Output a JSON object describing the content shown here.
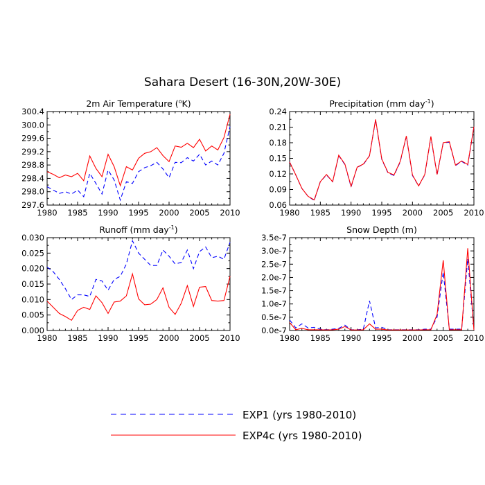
{
  "figure_title": "Sahara Desert (16-30N,20W-30E)",
  "legend": [
    {
      "name": "EXP1 (yrs 1980-2010)",
      "color": "#0000ff",
      "dash": "dashed"
    },
    {
      "name": "EXP4c (yrs 1980-2010)",
      "color": "#ff0000",
      "dash": "solid"
    }
  ],
  "chart_data": [
    {
      "type": "line",
      "title_pre": "2m Air Temperature (",
      "title_sup": "o",
      "title_post": "K)",
      "xlim": [
        1980,
        2010
      ],
      "xticks": [
        1980,
        1985,
        1990,
        1995,
        2000,
        2005,
        2010
      ],
      "ylim": [
        297.6,
        300.4
      ],
      "yticks": [
        297.6,
        298.0,
        298.4,
        298.8,
        299.2,
        299.6,
        300.0,
        300.4
      ],
      "ytick_labels": [
        "297.6",
        "298.0",
        "298.4",
        "298.8",
        "299.2",
        "299.6",
        "300.0",
        "300.4"
      ],
      "x": [
        1980,
        1981,
        1982,
        1983,
        1984,
        1985,
        1986,
        1987,
        1988,
        1989,
        1990,
        1991,
        1992,
        1993,
        1994,
        1995,
        1996,
        1997,
        1998,
        1999,
        2000,
        2001,
        2002,
        2003,
        2004,
        2005,
        2006,
        2007,
        2008,
        2009,
        2010
      ],
      "series": [
        {
          "name": "EXP1 (yrs 1980-2010)",
          "values": [
            298.15,
            298.05,
            297.95,
            298.0,
            297.93,
            298.05,
            297.85,
            298.55,
            298.25,
            297.93,
            298.65,
            298.35,
            297.75,
            298.3,
            298.25,
            298.6,
            298.72,
            298.78,
            298.88,
            298.68,
            298.42,
            298.88,
            298.87,
            299.02,
            298.92,
            299.12,
            298.8,
            298.92,
            298.8,
            299.15,
            299.95
          ]
        },
        {
          "name": "EXP4c (yrs 1980-2010)",
          "values": [
            298.6,
            298.52,
            298.42,
            298.5,
            298.45,
            298.55,
            298.33,
            299.07,
            298.7,
            298.45,
            299.12,
            298.75,
            298.18,
            298.75,
            298.65,
            299.0,
            299.15,
            299.2,
            299.32,
            299.08,
            298.9,
            299.37,
            299.33,
            299.45,
            299.32,
            299.57,
            299.22,
            299.37,
            299.25,
            299.62,
            300.32
          ]
        }
      ]
    },
    {
      "type": "line",
      "title_pre": "Precipitation (mm day",
      "title_sup": "-1",
      "title_post": ")",
      "xlim": [
        1980,
        2010
      ],
      "xticks": [
        1980,
        1985,
        1990,
        1995,
        2000,
        2005,
        2010
      ],
      "ylim": [
        0.06,
        0.24
      ],
      "yticks": [
        0.06,
        0.09,
        0.12,
        0.15,
        0.18,
        0.21,
        0.24
      ],
      "ytick_labels": [
        "0.06",
        "0.09",
        "0.12",
        "0.15",
        "0.18",
        "0.21",
        "0.24"
      ],
      "x": [
        1980,
        1981,
        1982,
        1983,
        1984,
        1985,
        1986,
        1987,
        1988,
        1989,
        1990,
        1991,
        1992,
        1993,
        1994,
        1995,
        1996,
        1997,
        1998,
        1999,
        2000,
        2001,
        2002,
        2003,
        2004,
        2005,
        2006,
        2007,
        2008,
        2009,
        2010
      ],
      "series": [
        {
          "name": "EXP1 (yrs 1980-2010)",
          "values": [
            0.143,
            0.118,
            0.092,
            0.077,
            0.069,
            0.105,
            0.118,
            0.105,
            0.155,
            0.138,
            0.095,
            0.133,
            0.138,
            0.155,
            0.224,
            0.148,
            0.122,
            0.117,
            0.143,
            0.192,
            0.117,
            0.097,
            0.118,
            0.191,
            0.118,
            0.18,
            0.181,
            0.136,
            0.144,
            0.137,
            0.21
          ]
        },
        {
          "name": "EXP4c (yrs 1980-2010)",
          "values": [
            0.143,
            0.118,
            0.092,
            0.077,
            0.07,
            0.105,
            0.119,
            0.105,
            0.156,
            0.139,
            0.096,
            0.133,
            0.139,
            0.155,
            0.225,
            0.149,
            0.123,
            0.118,
            0.144,
            0.193,
            0.118,
            0.097,
            0.119,
            0.192,
            0.119,
            0.18,
            0.182,
            0.137,
            0.145,
            0.138,
            0.211
          ]
        }
      ]
    },
    {
      "type": "line",
      "title_pre": "Runoff (mm day",
      "title_sup": "-1",
      "title_post": ")",
      "xlim": [
        1980,
        2010
      ],
      "xticks": [
        1980,
        1985,
        1990,
        1995,
        2000,
        2005,
        2010
      ],
      "ylim": [
        0.0,
        0.03
      ],
      "yticks": [
        0.0,
        0.005,
        0.01,
        0.015,
        0.02,
        0.025,
        0.03
      ],
      "ytick_labels": [
        "0.000",
        "0.005",
        "0.010",
        "0.015",
        "0.020",
        "0.025",
        "0.030"
      ],
      "x": [
        1980,
        1981,
        1982,
        1983,
        1984,
        1985,
        1986,
        1987,
        1988,
        1989,
        1990,
        1991,
        1992,
        1993,
        1994,
        1995,
        1996,
        1997,
        1998,
        1999,
        2000,
        2001,
        2002,
        2003,
        2004,
        2005,
        2006,
        2007,
        2008,
        2009,
        2010
      ],
      "series": [
        {
          "name": "EXP1 (yrs 1980-2010)",
          "values": [
            0.0205,
            0.019,
            0.0165,
            0.0135,
            0.01,
            0.0115,
            0.0115,
            0.011,
            0.0165,
            0.016,
            0.013,
            0.0165,
            0.0175,
            0.0215,
            0.029,
            0.025,
            0.023,
            0.021,
            0.021,
            0.026,
            0.024,
            0.0215,
            0.022,
            0.026,
            0.02,
            0.0255,
            0.027,
            0.0235,
            0.024,
            0.023,
            0.0285
          ]
        },
        {
          "name": "EXP4c (yrs 1980-2010)",
          "values": [
            0.0095,
            0.0075,
            0.0055,
            0.0045,
            0.0033,
            0.0065,
            0.0075,
            0.0068,
            0.0112,
            0.009,
            0.0055,
            0.0092,
            0.0095,
            0.0112,
            0.0183,
            0.0102,
            0.0083,
            0.0085,
            0.01,
            0.0138,
            0.0075,
            0.0052,
            0.0088,
            0.0145,
            0.0078,
            0.014,
            0.0142,
            0.0097,
            0.0095,
            0.0097,
            0.0175
          ]
        }
      ]
    },
    {
      "type": "line",
      "title_pre": "Snow Depth (m)",
      "title_sup": "",
      "title_post": "",
      "xlim": [
        1980,
        2010
      ],
      "xticks": [
        1980,
        1985,
        1990,
        1995,
        2000,
        2005,
        2010
      ],
      "ylim": [
        0.0,
        3.5e-07
      ],
      "yticks": [
        0.0,
        5e-08,
        1e-07,
        1.5e-07,
        2e-07,
        2.5e-07,
        3e-07,
        3.5e-07
      ],
      "ytick_labels": [
        "0.0e-7",
        "0.5e-7",
        "1.0e-7",
        "1.5e-7",
        "2.0e-7",
        "2.5e-7",
        "3.0e-7",
        "3.5e-7"
      ],
      "x": [
        1980,
        1981,
        1982,
        1983,
        1984,
        1985,
        1986,
        1987,
        1988,
        1989,
        1990,
        1991,
        1992,
        1993,
        1994,
        1995,
        1996,
        1997,
        1998,
        1999,
        2000,
        2001,
        2002,
        2003,
        2004,
        2005,
        2006,
        2007,
        2008,
        2009,
        2010
      ],
      "series": [
        {
          "name": "EXP1 (yrs 1980-2010)",
          "values": [
            4e-08,
            1e-08,
            2.5e-08,
            1e-08,
            1.2e-08,
            5e-09,
            3e-09,
            5e-09,
            8e-09,
            2e-08,
            3e-09,
            3e-09,
            5e-09,
            1.12e-07,
            1e-08,
            1.2e-08,
            3e-09,
            3e-09,
            3e-09,
            3e-09,
            3e-09,
            3e-09,
            5e-09,
            5e-09,
            5e-08,
            2.2e-07,
            5e-09,
            5e-09,
            5e-09,
            2.7e-07,
            5e-09
          ]
        },
        {
          "name": "EXP4c (yrs 1980-2010)",
          "values": [
            3e-08,
            3e-09,
            8e-09,
            3e-09,
            3e-09,
            3e-09,
            2e-09,
            3e-09,
            5e-09,
            1.5e-08,
            2e-09,
            2e-09,
            3e-09,
            2.5e-08,
            5e-09,
            5e-09,
            2e-09,
            2e-09,
            2e-09,
            2e-09,
            2e-09,
            2e-09,
            3e-09,
            3e-09,
            6e-08,
            2.65e-07,
            3e-09,
            3e-09,
            3e-09,
            3.1e-07,
            2e-09
          ]
        }
      ]
    }
  ]
}
